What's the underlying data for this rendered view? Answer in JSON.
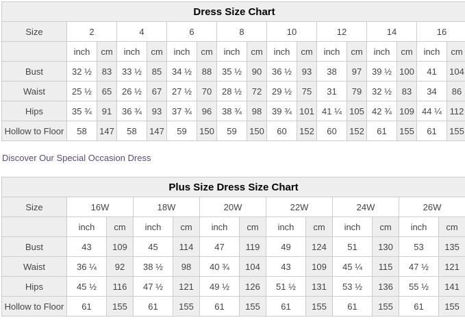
{
  "link": {
    "text": "Discover Our Special Occasion Dress"
  },
  "colors": {
    "cell_gray": "#eeeeee",
    "border": "#cccccc",
    "link_purple": "#5a4b73",
    "body_text": "#444444",
    "title_text": "#000000"
  },
  "chart_data": [
    {
      "type": "table",
      "title": "Dress Size Chart",
      "corner_label": "Size",
      "unit_labels": [
        "inch",
        "cm"
      ],
      "sizes": [
        "2",
        "4",
        "6",
        "8",
        "10",
        "12",
        "14",
        "16"
      ],
      "rows": [
        {
          "label": "Bust",
          "values": [
            [
              "32 ½",
              "83"
            ],
            [
              "33 ½",
              "85"
            ],
            [
              "34 ½",
              "88"
            ],
            [
              "35 ½",
              "90"
            ],
            [
              "36 ½",
              "93"
            ],
            [
              "38",
              "97"
            ],
            [
              "39 ½",
              "100"
            ],
            [
              "41",
              "104"
            ]
          ]
        },
        {
          "label": "Waist",
          "values": [
            [
              "25 ½",
              "65"
            ],
            [
              "26 ½",
              "67"
            ],
            [
              "27 ½",
              "70"
            ],
            [
              "28 ½",
              "72"
            ],
            [
              "29 ½",
              "75"
            ],
            [
              "31",
              "79"
            ],
            [
              "32 ½",
              "83"
            ],
            [
              "34",
              "86"
            ]
          ]
        },
        {
          "label": "Hips",
          "values": [
            [
              "35 ¾",
              "91"
            ],
            [
              "36 ¾",
              "93"
            ],
            [
              "37 ¾",
              "96"
            ],
            [
              "38 ¾",
              "98"
            ],
            [
              "39 ¾",
              "101"
            ],
            [
              "41 ¼",
              "105"
            ],
            [
              "42 ¾",
              "109"
            ],
            [
              "44 ¼",
              "112"
            ]
          ]
        },
        {
          "label": "Hollow to Floor",
          "values": [
            [
              "58",
              "147"
            ],
            [
              "58",
              "147"
            ],
            [
              "59",
              "150"
            ],
            [
              "59",
              "150"
            ],
            [
              "60",
              "152"
            ],
            [
              "60",
              "152"
            ],
            [
              "61",
              "155"
            ],
            [
              "61",
              "155"
            ]
          ]
        }
      ]
    },
    {
      "type": "table",
      "title": "Plus Size Dress Size Chart",
      "corner_label": "Size",
      "unit_labels": [
        "inch",
        "cm"
      ],
      "sizes": [
        "16W",
        "18W",
        "20W",
        "22W",
        "24W",
        "26W"
      ],
      "rows": [
        {
          "label": "Bust",
          "values": [
            [
              "43",
              "109"
            ],
            [
              "45",
              "114"
            ],
            [
              "47",
              "119"
            ],
            [
              "49",
              "124"
            ],
            [
              "51",
              "130"
            ],
            [
              "53",
              "135"
            ]
          ]
        },
        {
          "label": "Waist",
          "values": [
            [
              "36 ¼",
              "92"
            ],
            [
              "38 ½",
              "98"
            ],
            [
              "40 ¾",
              "104"
            ],
            [
              "43",
              "109"
            ],
            [
              "45 ¼",
              "115"
            ],
            [
              "47 ½",
              "121"
            ]
          ]
        },
        {
          "label": "Hips",
          "values": [
            [
              "45 ½",
              "116"
            ],
            [
              "47 ½",
              "121"
            ],
            [
              "49 ½",
              "126"
            ],
            [
              "51 ½",
              "131"
            ],
            [
              "53 ½",
              "136"
            ],
            [
              "55 ½",
              "141"
            ]
          ]
        },
        {
          "label": "Hollow to Floor",
          "values": [
            [
              "61",
              "155"
            ],
            [
              "61",
              "155"
            ],
            [
              "61",
              "155"
            ],
            [
              "61",
              "155"
            ],
            [
              "61",
              "155"
            ],
            [
              "61",
              "155"
            ]
          ]
        }
      ]
    }
  ]
}
